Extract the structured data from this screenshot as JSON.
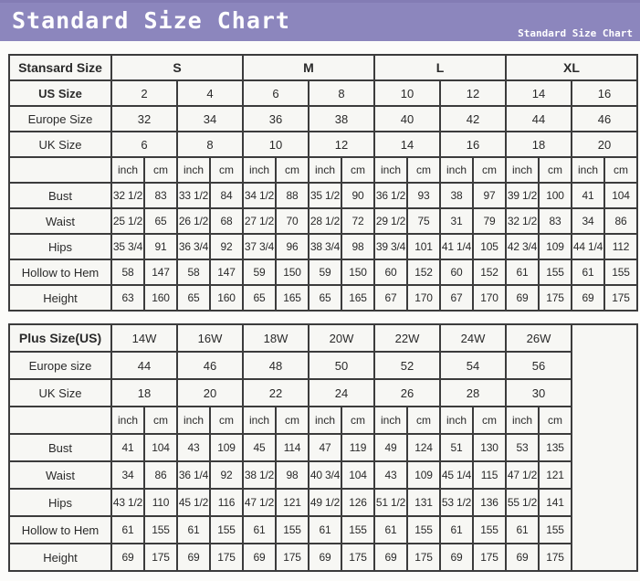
{
  "banner": {
    "title": "Standard Size Chart",
    "subtitle": "Standard Size Chart",
    "bg_color": "#8c86bd",
    "text_color": "#ffffff"
  },
  "colors": {
    "border": "#3c3c3c",
    "cell_bg": "#f7f7f4",
    "page_bg": "#fcfcfa"
  },
  "chart_data": [
    {
      "type": "table",
      "corner_label": "Stansard Size",
      "size_groups": [
        "S",
        "M",
        "L",
        "XL"
      ],
      "size_rows": [
        {
          "label": "US Size",
          "bold": true,
          "values": [
            "2",
            "4",
            "6",
            "8",
            "10",
            "12",
            "14",
            "16"
          ]
        },
        {
          "label": "Europe Size",
          "bold": false,
          "values": [
            "32",
            "34",
            "36",
            "38",
            "40",
            "42",
            "44",
            "46"
          ]
        },
        {
          "label": "UK Size",
          "bold": false,
          "values": [
            "6",
            "8",
            "10",
            "12",
            "14",
            "16",
            "18",
            "20"
          ]
        }
      ],
      "unit_labels": [
        "inch",
        "cm"
      ],
      "measure_rows": [
        {
          "label": "Bust",
          "values": [
            "32 1/2",
            "83",
            "33 1/2",
            "84",
            "34 1/2",
            "88",
            "35 1/2",
            "90",
            "36 1/2",
            "93",
            "38",
            "97",
            "39 1/2",
            "100",
            "41",
            "104"
          ]
        },
        {
          "label": "Waist",
          "values": [
            "25 1/2",
            "65",
            "26 1/2",
            "68",
            "27 1/2",
            "70",
            "28 1/2",
            "72",
            "29 1/2",
            "75",
            "31",
            "79",
            "32 1/2",
            "83",
            "34",
            "86"
          ]
        },
        {
          "label": "Hips",
          "values": [
            "35 3/4",
            "91",
            "36 3/4",
            "92",
            "37 3/4",
            "96",
            "38 3/4",
            "98",
            "39 3/4",
            "101",
            "41 1/4",
            "105",
            "42 3/4",
            "109",
            "44 1/4",
            "112"
          ]
        },
        {
          "label": "Hollow to Hem",
          "values": [
            "58",
            "147",
            "58",
            "147",
            "59",
            "150",
            "59",
            "150",
            "60",
            "152",
            "60",
            "152",
            "61",
            "155",
            "61",
            "155"
          ]
        },
        {
          "label": "Height",
          "values": [
            "63",
            "160",
            "65",
            "160",
            "65",
            "165",
            "65",
            "165",
            "67",
            "170",
            "67",
            "170",
            "69",
            "175",
            "69",
            "175"
          ]
        }
      ]
    },
    {
      "type": "table",
      "corner_label": "Plus Size(US)",
      "size_groups": [
        "14W",
        "16W",
        "18W",
        "20W",
        "22W",
        "24W",
        "26W"
      ],
      "has_trailing_empty_column": true,
      "size_rows": [
        {
          "label": "Europe size",
          "bold": false,
          "values": [
            "44",
            "46",
            "48",
            "50",
            "52",
            "54",
            "56"
          ]
        },
        {
          "label": "UK Size",
          "bold": false,
          "values": [
            "18",
            "20",
            "22",
            "24",
            "26",
            "28",
            "30"
          ]
        }
      ],
      "unit_labels": [
        "inch",
        "cm"
      ],
      "measure_rows": [
        {
          "label": "Bust",
          "values": [
            "41",
            "104",
            "43",
            "109",
            "45",
            "114",
            "47",
            "119",
            "49",
            "124",
            "51",
            "130",
            "53",
            "135"
          ]
        },
        {
          "label": "Waist",
          "values": [
            "34",
            "86",
            "36 1/4",
            "92",
            "38 1/2",
            "98",
            "40 3/4",
            "104",
            "43",
            "109",
            "45 1/4",
            "115",
            "47 1/2",
            "121"
          ]
        },
        {
          "label": "Hips",
          "values": [
            "43 1/2",
            "110",
            "45 1/2",
            "116",
            "47 1/2",
            "121",
            "49 1/2",
            "126",
            "51 1/2",
            "131",
            "53 1/2",
            "136",
            "55 1/2",
            "141"
          ]
        },
        {
          "label": "Hollow to Hem",
          "values": [
            "61",
            "155",
            "61",
            "155",
            "61",
            "155",
            "61",
            "155",
            "61",
            "155",
            "61",
            "155",
            "61",
            "155"
          ]
        },
        {
          "label": "Height",
          "values": [
            "69",
            "175",
            "69",
            "175",
            "69",
            "175",
            "69",
            "175",
            "69",
            "175",
            "69",
            "175",
            "69",
            "175"
          ]
        }
      ]
    }
  ]
}
